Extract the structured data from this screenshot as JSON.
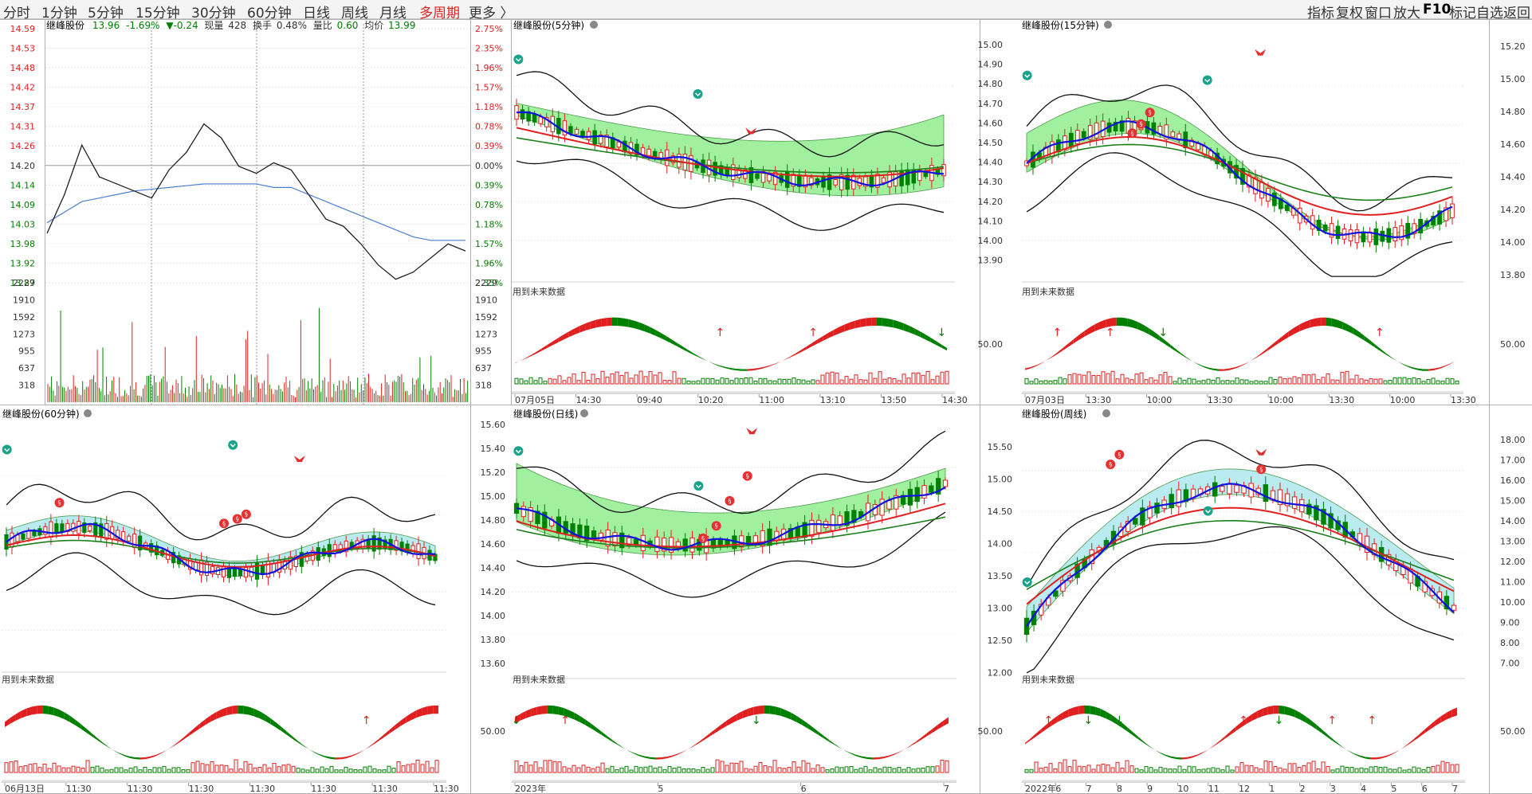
{
  "tabs": [
    {
      "id": "fenshi",
      "label": "分时",
      "active": false
    },
    {
      "id": "m1",
      "label": "1分钟",
      "active": false
    },
    {
      "id": "m5",
      "label": "5分钟",
      "active": false
    },
    {
      "id": "m15",
      "label": "15分钟",
      "active": false
    },
    {
      "id": "m30",
      "label": "30分钟",
      "active": false
    },
    {
      "id": "m60",
      "label": "60分钟",
      "active": false
    },
    {
      "id": "day",
      "label": "日线",
      "active": false
    },
    {
      "id": "week",
      "label": "周线",
      "active": false
    },
    {
      "id": "month",
      "label": "月线",
      "active": false
    },
    {
      "id": "multi",
      "label": "多周期",
      "active": true
    },
    {
      "id": "more",
      "label": "更多 〉",
      "active": false
    }
  ],
  "toolbar_right": {
    "items": [
      "指标",
      "复权",
      "窗口",
      "放大"
    ],
    "f10": "F10",
    "items2": [
      "标记",
      "自选",
      "返回"
    ]
  },
  "colors": {
    "up": "#e02020",
    "down": "#008000",
    "grid": "#c8c8c8",
    "ma_blue": "#1010e0",
    "band_green": "#90ee90",
    "band_cyan": "#aee8ee"
  },
  "timeshare": {
    "header": {
      "name": "继峰股份",
      "price": "13.96",
      "pct": "-1.69%",
      "chg": "▼-0.24",
      "vol_label": "现量",
      "vol": "428",
      "turn_label": "换手",
      "turn": "0.48%",
      "ratio_label": "量比",
      "ratio": "0.60",
      "avg_label": "均价",
      "avg": "13.99"
    },
    "price_left": [
      "14.59",
      "14.53",
      "14.48",
      "14.42",
      "14.37",
      "14.31",
      "14.26",
      "14.20",
      "14.14",
      "14.09",
      "14.03",
      "13.98",
      "13.92",
      "13.87"
    ],
    "pct_right": [
      "2.75%",
      "2.35%",
      "1.96%",
      "1.57%",
      "1.18%",
      "0.78%",
      "0.39%",
      "0.00%",
      "0.39%",
      "0.78%",
      "1.18%",
      "1.57%",
      "1.96%",
      "2.35%"
    ],
    "vol_ticks": [
      "2229",
      "1910",
      "1592",
      "1273",
      "955",
      "637",
      "318"
    ],
    "price_line": [
      14.01,
      14.12,
      14.26,
      14.17,
      14.15,
      14.13,
      14.11,
      14.19,
      14.24,
      14.32,
      14.28,
      14.2,
      14.18,
      14.21,
      14.19,
      14.12,
      14.05,
      14.03,
      13.98,
      13.92,
      13.88,
      13.9,
      13.94,
      13.98,
      13.96
    ],
    "avg_line": [
      14.04,
      14.07,
      14.1,
      14.11,
      14.12,
      14.13,
      14.135,
      14.14,
      14.145,
      14.15,
      14.15,
      14.15,
      14.15,
      14.14,
      14.14,
      14.12,
      14.1,
      14.08,
      14.06,
      14.04,
      14.02,
      14.0,
      13.99,
      13.99,
      13.99
    ]
  },
  "panels": {
    "m5": {
      "title": "继峰股份(5分钟)",
      "warn": "用到未来数据",
      "price_ticks": [],
      "ind_tick": "",
      "x_labels": [
        "07月05日",
        "14:30",
        "09:40",
        "10:20",
        "11:00",
        "13:10",
        "13:50",
        "14:30"
      ]
    },
    "m15": {
      "title": "继峰股份(15分钟)",
      "warn": "用到未来数据",
      "price_ticks": [
        "15.00",
        "14.90",
        "14.80",
        "14.70",
        "14.60",
        "14.50",
        "14.40",
        "14.30",
        "14.20",
        "14.10",
        "14.00",
        "13.90"
      ],
      "ind_tick": "50.00",
      "x_labels": [
        "07月03日",
        "13:30",
        "10:00",
        "13:30",
        "10:00",
        "13:30",
        "10:00",
        "13:30"
      ]
    },
    "m60": {
      "title": "继峰股份(60分钟)",
      "warn": "用到未来数据",
      "price_ticks": [],
      "ind_tick": "",
      "x_labels": [
        "06月13日",
        "11:30",
        "11:30",
        "11:30",
        "11:30",
        "11:30",
        "11:30",
        "11:30"
      ]
    },
    "day": {
      "title": "继峰股份(日线)",
      "warn": "用到未来数据",
      "price_ticks": [
        "15.60",
        "15.40",
        "15.20",
        "15.00",
        "14.80",
        "14.60",
        "14.40",
        "14.20",
        "14.00",
        "13.80",
        "13.60"
      ],
      "ind_tick": "50.00",
      "x_labels": [
        "2023年",
        "5",
        "6",
        "7"
      ]
    },
    "week": {
      "title": "继峰股份(周线)",
      "warn": "用到未来数据",
      "price_ticks": [
        "15.50",
        "15.00",
        "14.50",
        "14.00",
        "13.50",
        "13.00",
        "12.50",
        "12.00"
      ],
      "ind_tick": "50.00",
      "x_labels": [
        "2022年",
        "6",
        "7",
        "8",
        "9",
        "10",
        "11",
        "12",
        "1",
        "2",
        "3",
        "4",
        "5",
        "6",
        "7"
      ]
    }
  },
  "right_axis_top": {
    "price_ticks": [
      "15.20",
      "15.00",
      "14.80",
      "14.60",
      "14.40",
      "14.20",
      "14.00",
      "13.80"
    ],
    "ind_tick": "50.00"
  },
  "right_axis_bottom": {
    "price_ticks": [
      "18.00",
      "17.00",
      "16.00",
      "15.00",
      "14.00",
      "13.00",
      "12.00",
      "11.00",
      "10.00",
      "9.00",
      "8.00",
      "7.00"
    ],
    "ind_tick": "50.00"
  }
}
